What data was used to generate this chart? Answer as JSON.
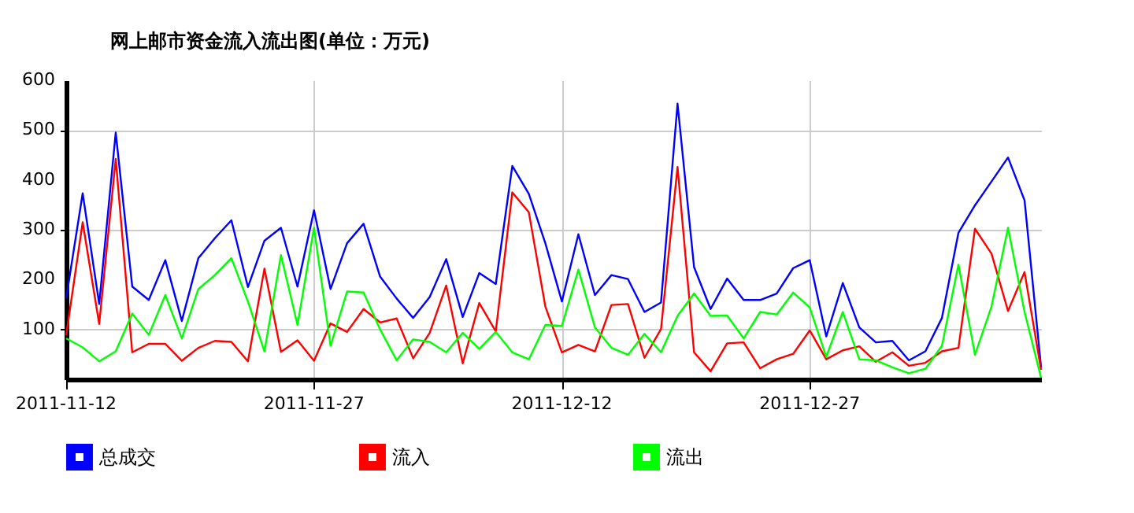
{
  "chart_data": {
    "type": "line",
    "title": "网上邮市资金流入流出图(单位：万元)",
    "x": [
      "2011-11-12",
      "2011-11-13",
      "2011-11-14",
      "2011-11-15",
      "2011-11-16",
      "2011-11-17",
      "2011-11-18",
      "2011-11-19",
      "2011-11-20",
      "2011-11-21",
      "2011-11-22",
      "2011-11-23",
      "2011-11-24",
      "2011-11-25",
      "2011-11-26",
      "2011-11-27",
      "2011-11-28",
      "2011-11-29",
      "2011-11-30",
      "2011-12-01",
      "2011-12-02",
      "2011-12-03",
      "2011-12-04",
      "2011-12-05",
      "2011-12-06",
      "2011-12-07",
      "2011-12-08",
      "2011-12-09",
      "2011-12-10",
      "2011-12-11",
      "2011-12-12",
      "2011-12-13",
      "2011-12-14",
      "2011-12-15",
      "2011-12-16",
      "2011-12-17",
      "2011-12-18",
      "2011-12-19",
      "2011-12-20",
      "2011-12-21",
      "2011-12-22",
      "2011-12-23",
      "2011-12-24",
      "2011-12-25",
      "2011-12-26",
      "2011-12-27",
      "2011-12-28",
      "2011-12-29",
      "2011-12-30",
      "2011-12-31",
      "2012-01-01",
      "2012-01-02",
      "2012-01-03",
      "2012-01-04",
      "2012-01-05",
      "2012-01-06",
      "2012-01-07",
      "2012-01-08",
      "2012-01-09",
      "2012-01-10"
    ],
    "series": [
      {
        "name": "总成交",
        "color": "#0000ff",
        "values": [
          162,
          373,
          151,
          495,
          186,
          159,
          239,
          117,
          243,
          283,
          319,
          185,
          278,
          304,
          186,
          339,
          181,
          273,
          312,
          206,
          162,
          123,
          165,
          241,
          125,
          213,
          191,
          428,
          372,
          273,
          156,
          291,
          169,
          209,
          201,
          135,
          154,
          553,
          225,
          141,
          202,
          159,
          159,
          172,
          223,
          239,
          86,
          193,
          104,
          74,
          77,
          38,
          56,
          123,
          294,
          349,
          397,
          445,
          359,
          24
        ]
      },
      {
        "name": "流入",
        "color": "#ff0000",
        "values": [
          88,
          315,
          111,
          442,
          54,
          71,
          71,
          37,
          63,
          77,
          75,
          36,
          222,
          55,
          78,
          37,
          112,
          95,
          141,
          114,
          122,
          42,
          93,
          188,
          32,
          153,
          96,
          375,
          335,
          146,
          54,
          69,
          56,
          149,
          151,
          43,
          101,
          426,
          54,
          16,
          72,
          74,
          22,
          40,
          51,
          98,
          40,
          58,
          66,
          35,
          54,
          27,
          33,
          56,
          63,
          302,
          252,
          137,
          215,
          19
        ]
      },
      {
        "name": "流出",
        "color": "#00ff00",
        "values": [
          82,
          64,
          36,
          56,
          132,
          89,
          169,
          82,
          181,
          209,
          243,
          156,
          56,
          249,
          109,
          304,
          67,
          176,
          174,
          100,
          38,
          80,
          75,
          54,
          93,
          61,
          95,
          54,
          40,
          109,
          107,
          220,
          104,
          63,
          49,
          91,
          54,
          127,
          172,
          127,
          128,
          82,
          135,
          130,
          174,
          144,
          45,
          135,
          40,
          38,
          24,
          12,
          21,
          67,
          230,
          49,
          146,
          304,
          135,
          3
        ]
      }
    ],
    "xlim": [
      "2011-11-12",
      "2012-01-10"
    ],
    "xticks": [
      {
        "value": "2011-11-12",
        "label": "2011-11-12"
      },
      {
        "value": "2011-11-27",
        "label": "2011-11-27"
      },
      {
        "value": "2011-12-12",
        "label": "2011-12-12"
      },
      {
        "value": "2011-12-27",
        "label": "2011-12-27"
      }
    ],
    "ylim": [
      0,
      600
    ],
    "yticks": [
      100,
      200,
      300,
      400,
      500,
      600
    ],
    "grid": true,
    "legend": "bottom",
    "line_style": "solid"
  }
}
